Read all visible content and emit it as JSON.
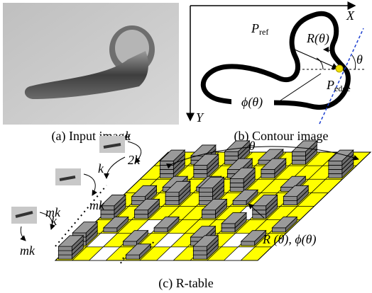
{
  "panels": [
    {
      "caption": "(a) Input image"
    },
    {
      "caption": "(b) Contour image",
      "labels": {
        "x_axis": "X",
        "y_axis": "Y",
        "p_ref": {
          "main": "P",
          "sub": "ref"
        },
        "r_theta": "R(θ)",
        "theta": "θ",
        "phi_theta": "ϕ(θ)",
        "p_edge": {
          "main": "P",
          "sub": "edge"
        }
      }
    },
    {
      "caption": "(c) R-table",
      "labels": {
        "theta": "θ",
        "steps": [
          "k",
          "2k",
          "k",
          "mk",
          "k",
          "mk",
          "mk"
        ],
        "entry": "R (θ),  ϕ(θ)"
      }
    }
  ]
}
